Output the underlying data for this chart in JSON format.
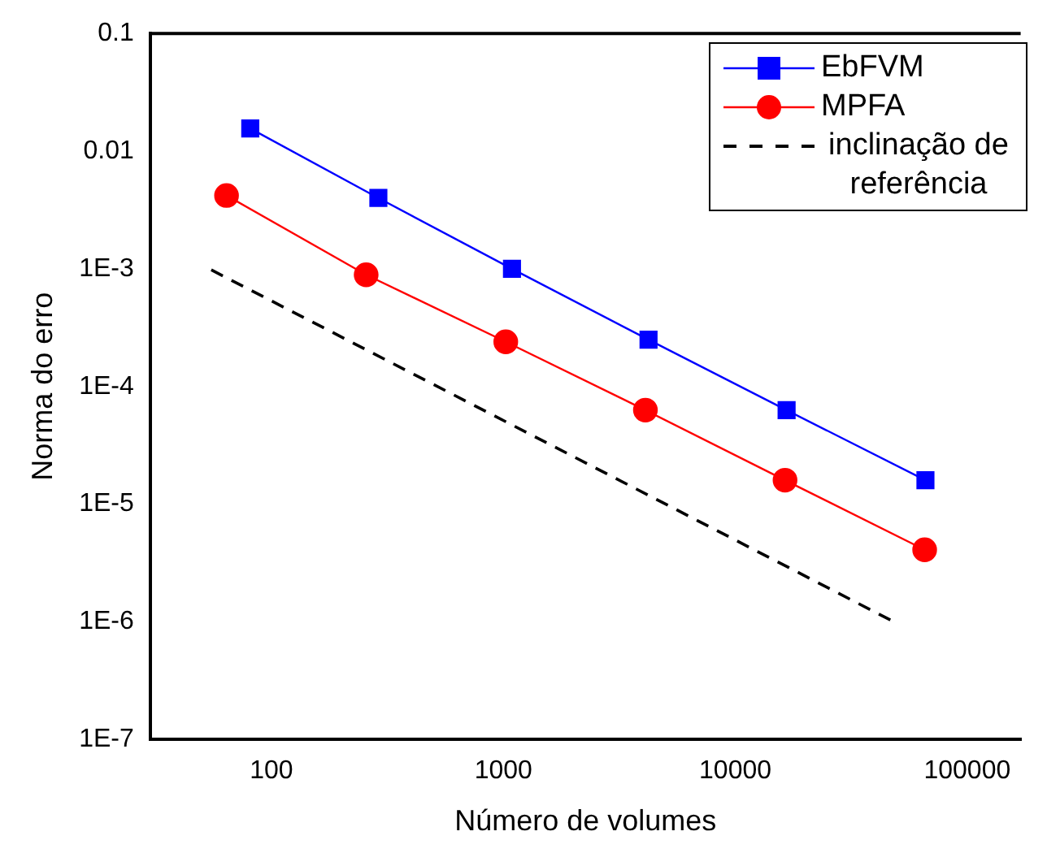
{
  "chart_data": {
    "type": "line",
    "xlabel": "Número de volumes",
    "ylabel": "Norma do erro",
    "log": "xy",
    "xlim": [
      30,
      170000
    ],
    "ylim": [
      1e-07,
      0.1
    ],
    "xticks": [
      100,
      1000,
      10000,
      100000
    ],
    "yticks": [
      {
        "value": 1e-07,
        "label": "1E-7"
      },
      {
        "value": 1e-06,
        "label": "1E-6"
      },
      {
        "value": 1e-05,
        "label": "1E-5"
      },
      {
        "value": 0.0001,
        "label": "1E-4"
      },
      {
        "value": 0.001,
        "label": "1E-3"
      },
      0.01,
      0.1
    ],
    "grid": false,
    "legend": "top right",
    "series": [
      {
        "name": "EbFVM",
        "color": "#0000ff",
        "marker": "square",
        "line_style": "solid",
        "x": [
          81,
          289,
          1089,
          4225,
          16641,
          66049
        ],
        "values": [
          0.0156,
          0.004,
          0.001,
          0.00025,
          6.3e-05,
          1.6e-05
        ]
      },
      {
        "name": "MPFA",
        "color": "#ff0000",
        "marker": "circle",
        "line_style": "solid",
        "x": [
          64,
          256,
          1024,
          4096,
          16384,
          65536
        ],
        "values": [
          0.0042,
          0.00089,
          0.00024,
          6.3e-05,
          1.6e-05,
          4.1e-06
        ]
      },
      {
        "name": "inclinação de referência",
        "color": "#000000",
        "marker": "none",
        "line_style": "dashed",
        "x": [
          55,
          47000
        ],
        "values": [
          0.00098,
          1.03e-06
        ]
      }
    ]
  }
}
